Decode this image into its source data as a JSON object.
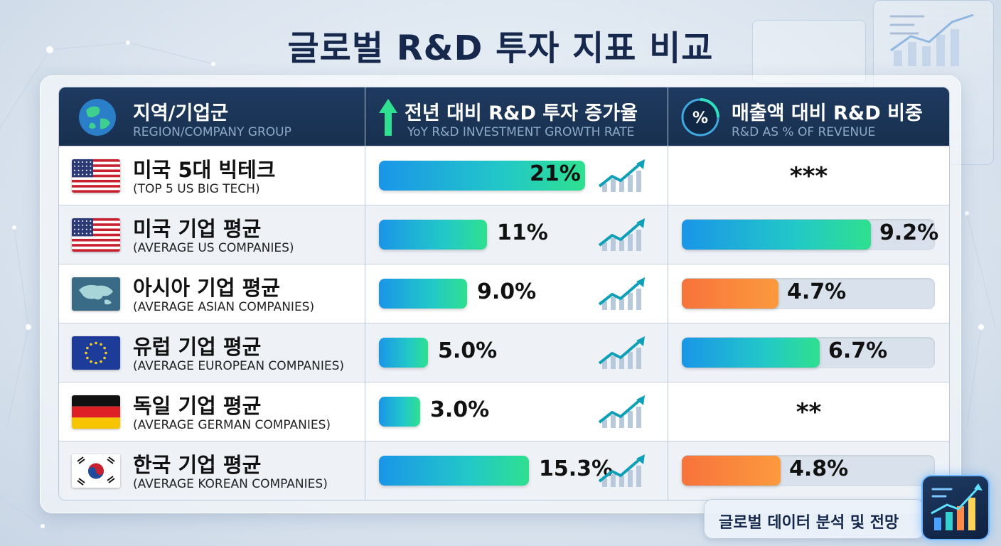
{
  "title": "글로벌 R&D 투자 지표 비교",
  "columns": [
    {
      "title_ko": "지역/기업군",
      "title_en": "REGION/COMPANY GROUP",
      "icon": "globe-icon"
    },
    {
      "title_ko": "전년 대비 R&D 투자 증가율",
      "title_en": "YoY R&D INVESTMENT GROWTH RATE",
      "icon": "arrow-up-icon"
    },
    {
      "title_ko": "매출액 대비 R&D 비중",
      "title_en": "R&D AS % OF REVENUE",
      "icon": "percent-icon"
    }
  ],
  "rows": [
    {
      "name_ko": "미국 5대 빅테크",
      "name_en": "(TOP 5 US BIG TECH)",
      "flag": "us-flag",
      "growth_label": "21%",
      "revenue_label": "***"
    },
    {
      "name_ko": "미국 기업 평균",
      "name_en": "(AVERAGE US COMPANIES)",
      "flag": "us-flag",
      "growth_label": "11%",
      "revenue_label": "9.2%"
    },
    {
      "name_ko": "아시아 기업 평균",
      "name_en": "(AVERAGE ASIAN COMPANIES)",
      "flag": "asia-map-flag",
      "growth_label": "9.0%",
      "revenue_label": "4.7%"
    },
    {
      "name_ko": "유럽 기업 평균",
      "name_en": "(AVERAGE EUROPEAN COMPANIES)",
      "flag": "eu-flag",
      "growth_label": "5.0%",
      "revenue_label": "6.7%"
    },
    {
      "name_ko": "독일 기업 평균",
      "name_en": "(AVERAGE GERMAN COMPANIES)",
      "flag": "germany-flag",
      "growth_label": "3.0%",
      "revenue_label": "**"
    },
    {
      "name_ko": "한국 기업 평균",
      "name_en": "(AVERAGE KOREAN COMPANIES)",
      "flag": "korea-flag",
      "growth_label": "15.3%",
      "revenue_label": "4.8%"
    }
  ],
  "chart_data": {
    "type": "table",
    "categories": [
      "미국 5대 빅테크",
      "미국 기업 평균",
      "아시아 기업 평균",
      "유럽 기업 평균",
      "독일 기업 평균",
      "한국 기업 평균"
    ],
    "series": [
      {
        "name": "전년 대비 R&D 투자 증가율",
        "values": [
          21,
          11,
          9.0,
          5.0,
          3.0,
          15.3
        ],
        "unit": "%"
      },
      {
        "name": "매출액 대비 R&D 비중",
        "values": [
          null,
          9.2,
          4.7,
          6.7,
          null,
          4.8
        ],
        "unit": "%",
        "bar_colors": [
          null,
          "blue",
          "orange",
          "blue",
          null,
          "orange"
        ]
      }
    ]
  },
  "colors": {
    "header_bg": "#1f3a60",
    "growth_bar": "#1a95e8",
    "revenue_high": "#22c8c8",
    "revenue_low": "#f7733b"
  },
  "footer": {
    "badge_text": "글로벌 데이터 분석 및 전망",
    "badge_icon": "chart-analytics-icon"
  }
}
